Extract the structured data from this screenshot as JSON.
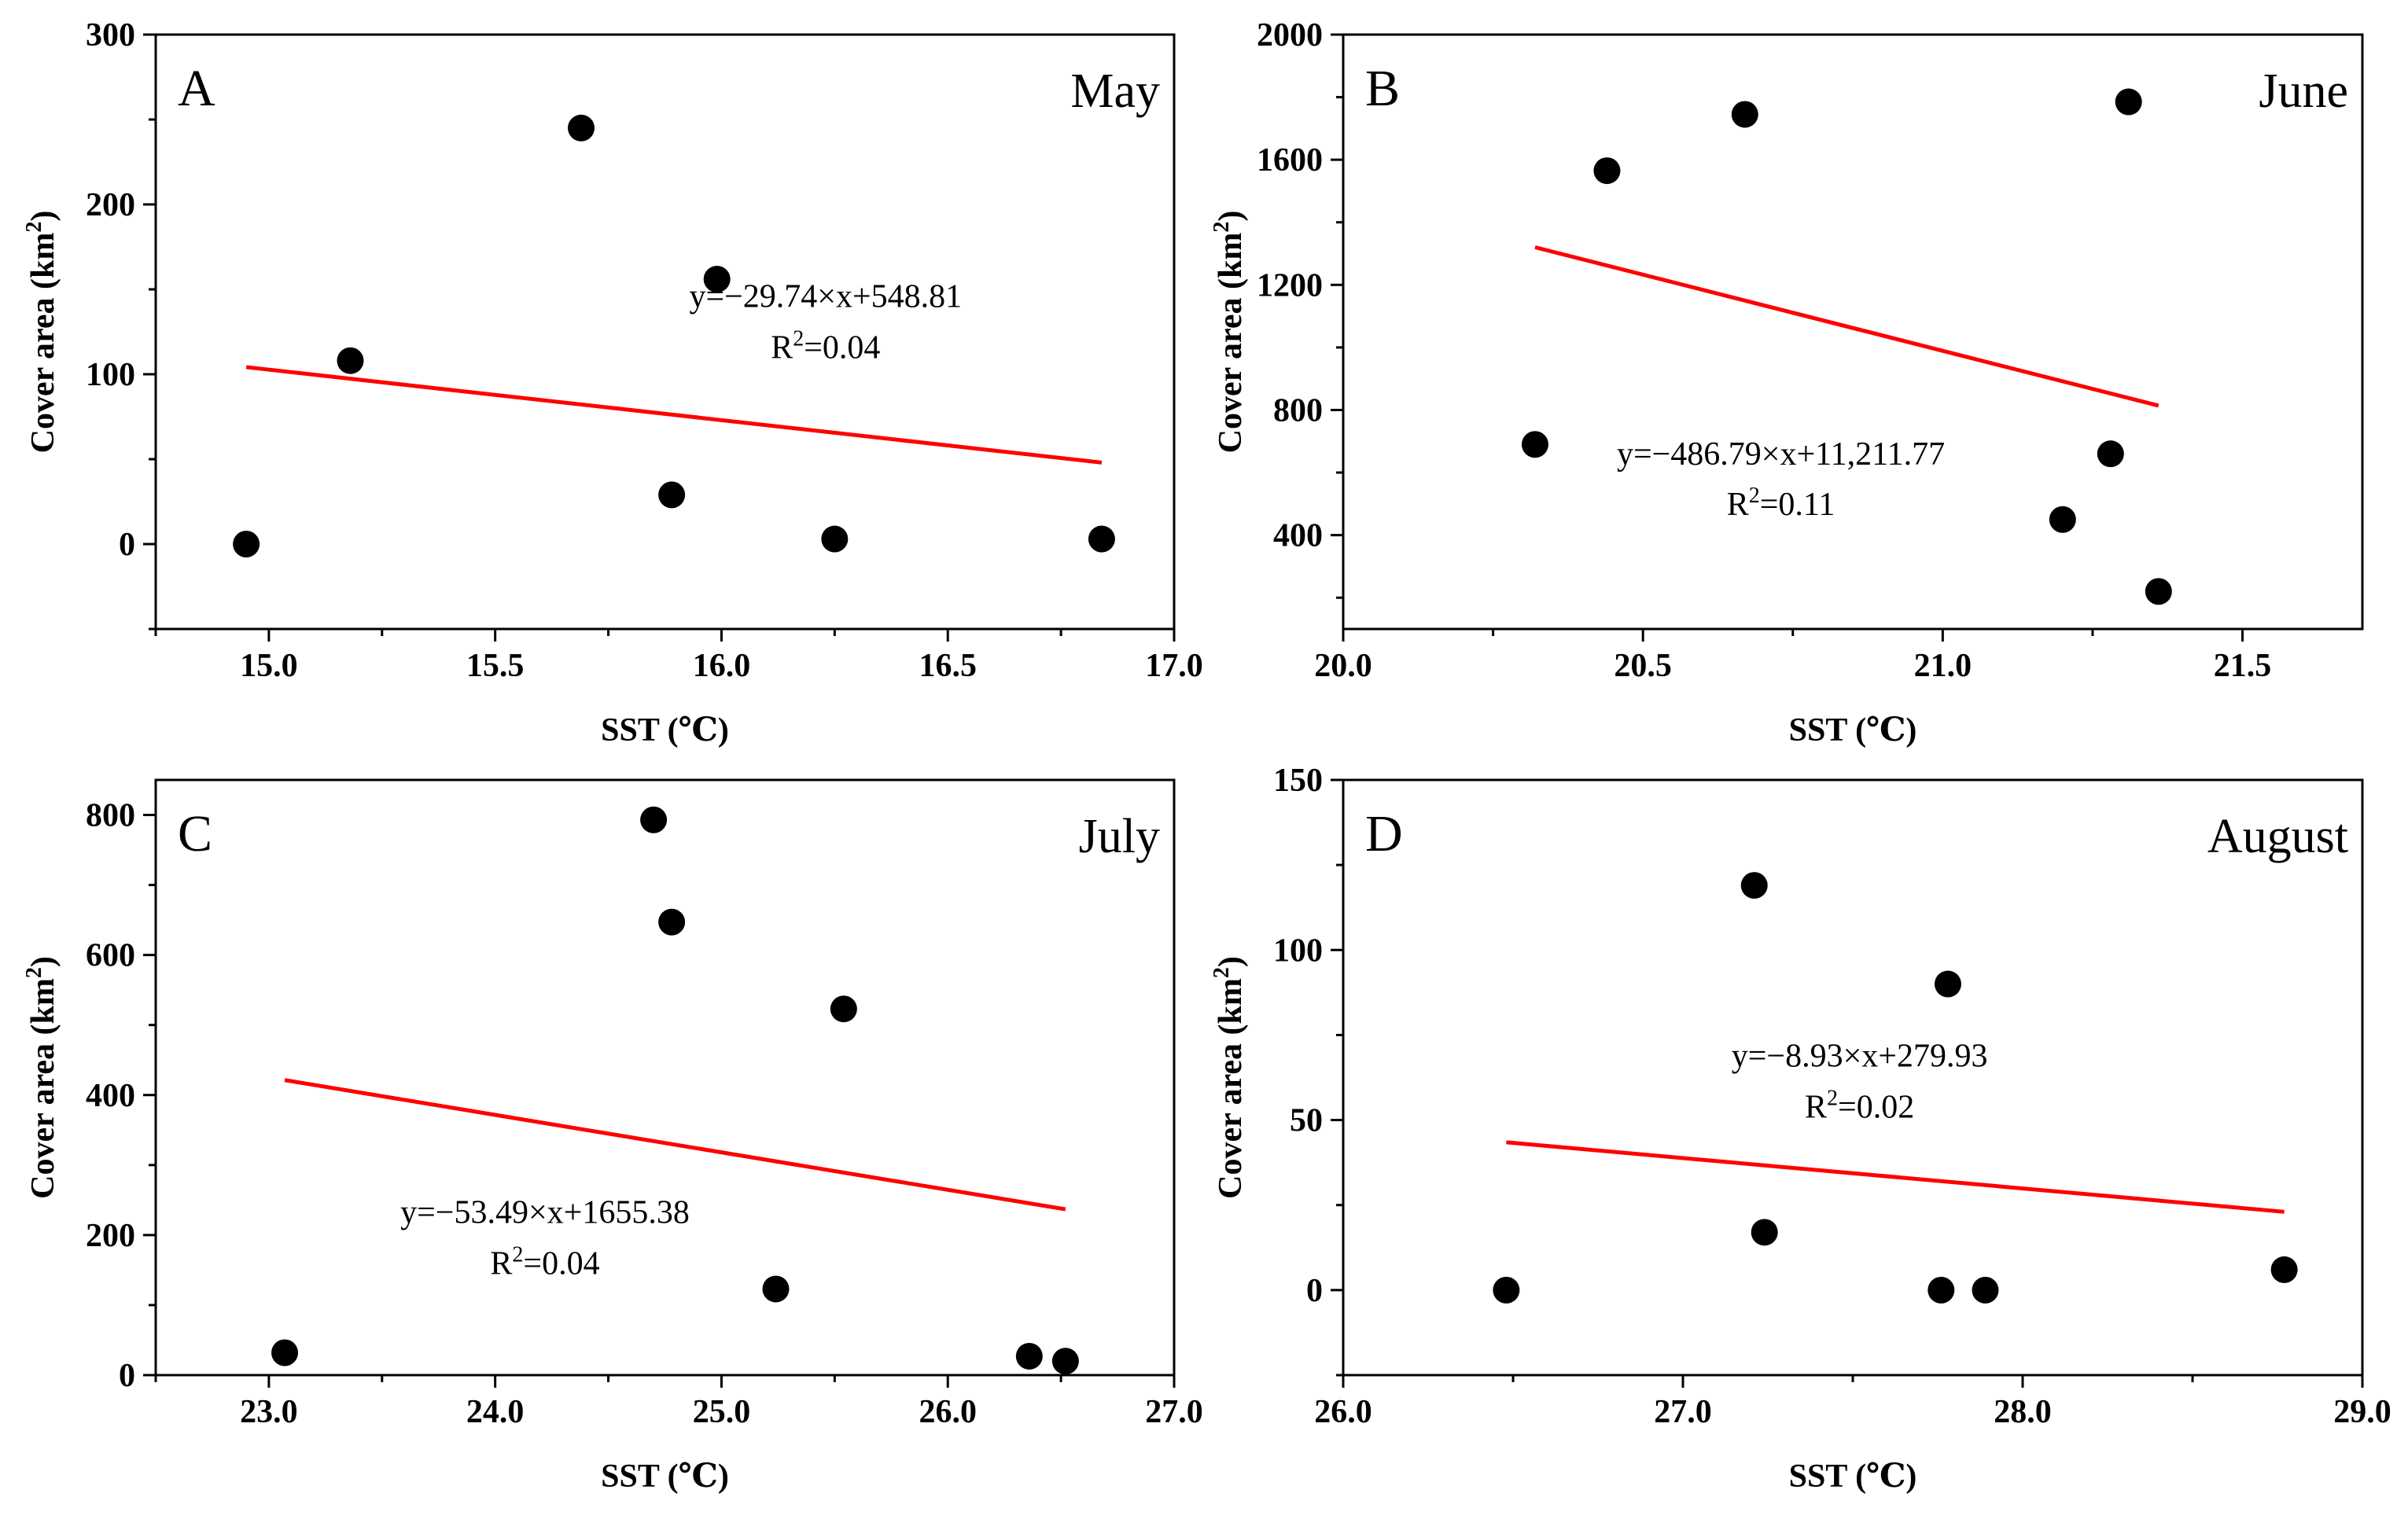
{
  "chart_data": [
    {
      "type": "scatter",
      "panel": "A",
      "title": "May",
      "xlabel": "SST (℃)",
      "ylabel_main": "Cover area (km",
      "ylabel_sup": "2",
      "ylabel_end": ")",
      "xlim": [
        14.75,
        17.0
      ],
      "ylim": [
        -50,
        300
      ],
      "xticks": [
        15.0,
        15.5,
        16.0,
        16.5,
        17.0
      ],
      "xtick_labels": [
        "15.0",
        "15.5",
        "16.0",
        "16.5",
        "17.0"
      ],
      "yticks": [
        0,
        100,
        200,
        300
      ],
      "ytick_labels": [
        "0",
        "100",
        "200",
        "300"
      ],
      "points": [
        {
          "x": 14.95,
          "y": 0
        },
        {
          "x": 15.18,
          "y": 108
        },
        {
          "x": 15.69,
          "y": 245
        },
        {
          "x": 15.89,
          "y": 29
        },
        {
          "x": 15.99,
          "y": 156
        },
        {
          "x": 16.25,
          "y": 3
        },
        {
          "x": 16.84,
          "y": 3
        }
      ],
      "fit": {
        "slope": -29.74,
        "intercept": 548.81,
        "x_start": 14.95,
        "x_end": 16.84
      },
      "equation": "y=−29.74×x+548.81",
      "r2_label": "R",
      "r2_sup": "2",
      "r2_value": "=0.04",
      "eq_x": 16.23,
      "eq_y": 146,
      "r2_y": 116
    },
    {
      "type": "scatter",
      "panel": "B",
      "title": "June",
      "xlabel": "SST (℃)",
      "ylabel_main": "Cover area (km",
      "ylabel_sup": "2",
      "ylabel_end": ")",
      "xlim": [
        20.0,
        21.7
      ],
      "ylim": [
        100,
        2000
      ],
      "xticks": [
        20.0,
        20.5,
        21.0,
        21.5
      ],
      "xtick_labels": [
        "20.0",
        "20.5",
        "21.0",
        "21.5"
      ],
      "yticks": [
        400,
        800,
        1200,
        1600,
        2000
      ],
      "ytick_labels": [
        "400",
        "800",
        "1200",
        "1600",
        "2000"
      ],
      "points": [
        {
          "x": 20.32,
          "y": 690
        },
        {
          "x": 20.44,
          "y": 1565
        },
        {
          "x": 20.67,
          "y": 1745
        },
        {
          "x": 21.2,
          "y": 450
        },
        {
          "x": 21.28,
          "y": 660
        },
        {
          "x": 21.31,
          "y": 1785
        },
        {
          "x": 21.36,
          "y": 220
        }
      ],
      "fit": {
        "slope": -486.79,
        "intercept": 11211.77,
        "x_start": 20.32,
        "x_end": 21.36
      },
      "equation": "y=−486.79×x+11,211.77",
      "r2_label": "R",
      "r2_sup": "2",
      "r2_value": "=0.11",
      "eq_x": 20.73,
      "eq_y": 660,
      "r2_y": 500
    },
    {
      "type": "scatter",
      "panel": "C",
      "title": "July",
      "xlabel": "SST (℃)",
      "ylabel_main": "Cover area (km",
      "ylabel_sup": "2",
      "ylabel_end": ")",
      "xlim": [
        22.5,
        27.0
      ],
      "ylim": [
        0,
        850
      ],
      "xticks": [
        23.0,
        24.0,
        25.0,
        26.0,
        27.0
      ],
      "xtick_labels": [
        "23.0",
        "24.0",
        "25.0",
        "26.0",
        "27.0"
      ],
      "yticks": [
        0,
        200,
        400,
        600,
        800
      ],
      "ytick_labels": [
        "0",
        "200",
        "400",
        "600",
        "800"
      ],
      "points": [
        {
          "x": 23.07,
          "y": 32
        },
        {
          "x": 24.7,
          "y": 793
        },
        {
          "x": 24.78,
          "y": 647
        },
        {
          "x": 25.24,
          "y": 123
        },
        {
          "x": 25.54,
          "y": 523
        },
        {
          "x": 26.36,
          "y": 27
        },
        {
          "x": 26.52,
          "y": 20
        }
      ],
      "fit": {
        "slope": -53.49,
        "intercept": 1655.38,
        "x_start": 23.07,
        "x_end": 26.52
      },
      "equation": "y=−53.49×x+1655.38",
      "r2_label": "R",
      "r2_sup": "2",
      "r2_value": "=0.04",
      "eq_x": 24.22,
      "eq_y": 233,
      "r2_y": 160
    },
    {
      "type": "scatter",
      "panel": "D",
      "title": "August",
      "xlabel": "SST (℃)",
      "ylabel_main": "Cover area (km",
      "ylabel_sup": "2",
      "ylabel_end": ")",
      "xlim": [
        26.0,
        29.0
      ],
      "ylim": [
        -25,
        150
      ],
      "xticks": [
        26.0,
        27.0,
        28.0,
        29.0
      ],
      "xtick_labels": [
        "26.0",
        "27.0",
        "28.0",
        "29.0"
      ],
      "yticks": [
        0,
        50,
        100,
        150
      ],
      "ytick_labels": [
        "0",
        "50",
        "100",
        "150"
      ],
      "points": [
        {
          "x": 26.48,
          "y": 0
        },
        {
          "x": 27.21,
          "y": 119
        },
        {
          "x": 27.24,
          "y": 17
        },
        {
          "x": 27.76,
          "y": 0
        },
        {
          "x": 27.78,
          "y": 90
        },
        {
          "x": 27.89,
          "y": 0
        },
        {
          "x": 28.77,
          "y": 6
        }
      ],
      "fit": {
        "slope": -8.93,
        "intercept": 279.93,
        "x_start": 26.48,
        "x_end": 28.77
      },
      "equation": "y=−8.93×x+279.93",
      "r2_label": "R",
      "r2_sup": "2",
      "r2_value": "=0.02",
      "eq_x": 27.52,
      "eq_y": 69,
      "r2_y": 54
    }
  ],
  "colors": {
    "points": "#000000",
    "fit_line": "#ff0000",
    "axes": "#000000",
    "background": "#ffffff"
  }
}
